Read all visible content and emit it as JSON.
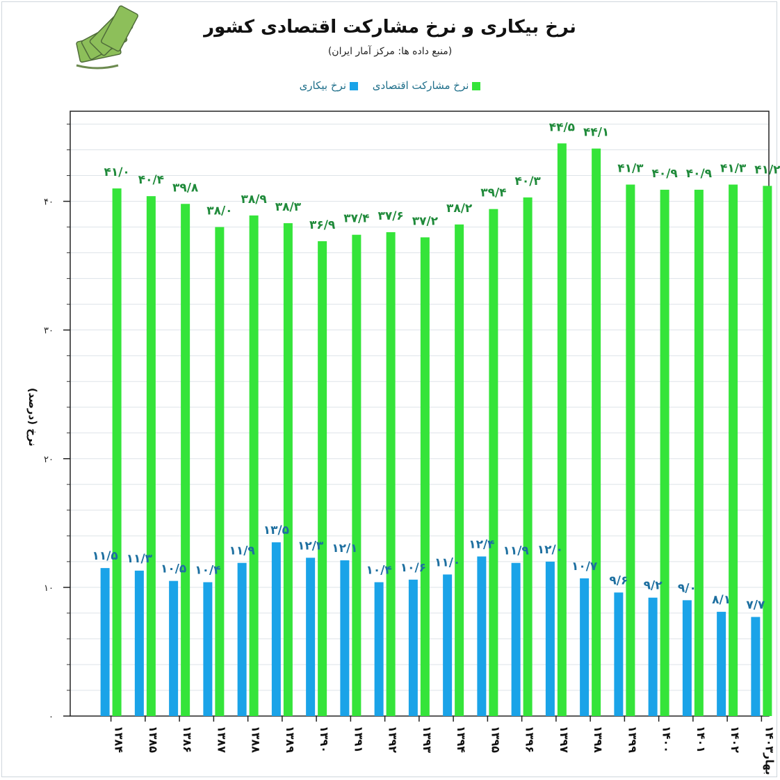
{
  "header": {
    "title": "نرخ بیکاری و نرخ مشارکت اقتصادی کشور",
    "subtitle": "(منبع داده ها: مرکز آمار ایران)"
  },
  "colors": {
    "unemployment": "#1aa3e8",
    "participation": "#35e43a",
    "participation_label": "#1f8a3a",
    "unemployment_label": "#1d6fa0",
    "grid": "#dde3e8"
  },
  "chart_data": {
    "type": "bar",
    "title": "نرخ بیکاری و نرخ مشارکت اقتصادی کشور",
    "subtitle": "(منبع داده ها: مرکز آمار ایران)",
    "ylabel": "نرخ (درصد)",
    "xlabel": "",
    "ylim": [
      0,
      47
    ],
    "yticks": [
      0,
      10,
      20,
      30,
      40
    ],
    "ytick_labels": [
      "۰",
      "۱۰",
      "۲۰",
      "۳۰",
      "۴۰"
    ],
    "grid": true,
    "legend_position": "top-center",
    "categories": [
      "۱۳۸۴",
      "۱۳۸۵",
      "۱۳۸۶",
      "۱۳۸۷",
      "۱۳۸۸",
      "۱۳۸۹",
      "۱۳۹۰",
      "۱۳۹۱",
      "۱۳۹۲",
      "۱۳۹۳",
      "۱۳۹۴",
      "۱۳۹۵",
      "۱۳۹۶",
      "۱۳۹۷",
      "۱۳۹۸",
      "۱۳۹۹",
      "۱۴۰۰",
      "۱۴۰۱",
      "۱۴۰۲",
      "بهار۱۴۰۳"
    ],
    "series": [
      {
        "name": "نرخ بیکاری",
        "values": [
          11.5,
          11.3,
          10.5,
          10.4,
          11.9,
          13.5,
          12.3,
          12.1,
          10.4,
          10.6,
          11.0,
          12.4,
          11.9,
          12.0,
          10.7,
          9.6,
          9.2,
          9.0,
          8.1,
          7.7
        ],
        "labels": [
          "۱۱/۵",
          "۱۱/۳",
          "۱۰/۵",
          "۱۰/۴",
          "۱۱/۹",
          "۱۳/۵",
          "۱۲/۳",
          "۱۲/۱",
          "۱۰/۴",
          "۱۰/۶",
          "۱۱/۰",
          "۱۲/۴",
          "۱۱/۹",
          "۱۲/۰",
          "۱۰/۷",
          "۹/۶",
          "۹/۲",
          "۹/۰",
          "۸/۱",
          "۷/۷"
        ]
      },
      {
        "name": "نرخ مشارکت اقتصادی",
        "values": [
          41.0,
          40.4,
          39.8,
          38.0,
          38.9,
          38.3,
          36.9,
          37.4,
          37.6,
          37.2,
          38.2,
          39.4,
          40.3,
          44.5,
          44.1,
          41.3,
          40.9,
          40.9,
          41.3,
          41.2
        ],
        "labels": [
          "۴۱/۰",
          "۴۰/۴",
          "۳۹/۸",
          "۳۸/۰",
          "۳۸/۹",
          "۳۸/۳",
          "۳۶/۹",
          "۳۷/۴",
          "۳۷/۶",
          "۳۷/۲",
          "۳۸/۲",
          "۳۹/۴",
          "۴۰/۳",
          "۴۴/۵",
          "۴۴/۱",
          "۴۱/۳",
          "۴۰/۹",
          "۴۰/۹",
          "۴۱/۳",
          "۴۱/۲"
        ]
      }
    ]
  }
}
